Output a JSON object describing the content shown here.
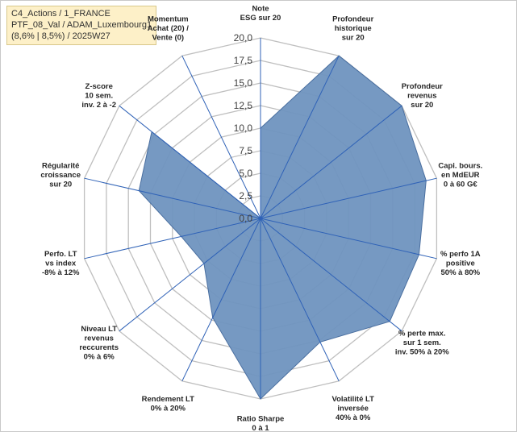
{
  "header": {
    "line1": "C4_Actions / 1_FRANCE",
    "line2": "PTF_08_Val / ADAM_Luxembourg1",
    "line3": "(8,6% | 8,5%) / 2025W27"
  },
  "colors": {
    "fill": "#6f93bf",
    "stroke": "#4a6fa0",
    "grid": "#bfbfbf",
    "spoke": "#2f62b7"
  },
  "chart_data": {
    "type": "radar",
    "rmin": 0,
    "rmax": 20,
    "tick_labels": [
      "0,0",
      "2,5",
      "5,0",
      "7,5",
      "10,0",
      "12,5",
      "15,0",
      "17,5",
      "20,0"
    ],
    "ticks": [
      0,
      2.5,
      5,
      7.5,
      10,
      12.5,
      15,
      17.5,
      20
    ],
    "axes": [
      {
        "lines": [
          "Note",
          "ESG sur 20"
        ]
      },
      {
        "lines": [
          "Profondeur",
          "historique",
          "sur 20"
        ]
      },
      {
        "lines": [
          "Profondeur",
          "revenus",
          "sur 20"
        ]
      },
      {
        "lines": [
          "Capi. bours.",
          "en MdEUR",
          "0 à 60 G€"
        ]
      },
      {
        "lines": [
          "% perfo 1A",
          "positive",
          "50% à 80%"
        ]
      },
      {
        "lines": [
          "% perte max.",
          "sur 1 sem.",
          "inv. 50% à 20%"
        ]
      },
      {
        "lines": [
          "Volatilité LT",
          "inversée",
          "40% à 0%"
        ]
      },
      {
        "lines": [
          "Ratio Sharpe",
          "0 à 1"
        ]
      },
      {
        "lines": [
          "Rendement LT",
          "0% à 20%"
        ]
      },
      {
        "lines": [
          "Niveau LT",
          "revenus",
          "reccurents",
          "0% à 6%"
        ]
      },
      {
        "lines": [
          "Perfo. LT",
          "vs index",
          "-8% à 12%"
        ]
      },
      {
        "lines": [
          "Régularité",
          "croissance",
          "sur 20"
        ]
      },
      {
        "lines": [
          "Z-score",
          "10 sem.",
          "inv. 2 à -2"
        ]
      },
      {
        "lines": [
          "Momentum",
          "Achat (20) /",
          "Vente (0)"
        ]
      }
    ],
    "series": [
      {
        "values": [
          10,
          20,
          20,
          18.8,
          18,
          18.3,
          15.2,
          20,
          12.2,
          8,
          9,
          13.8,
          15.4,
          0
        ]
      }
    ]
  }
}
